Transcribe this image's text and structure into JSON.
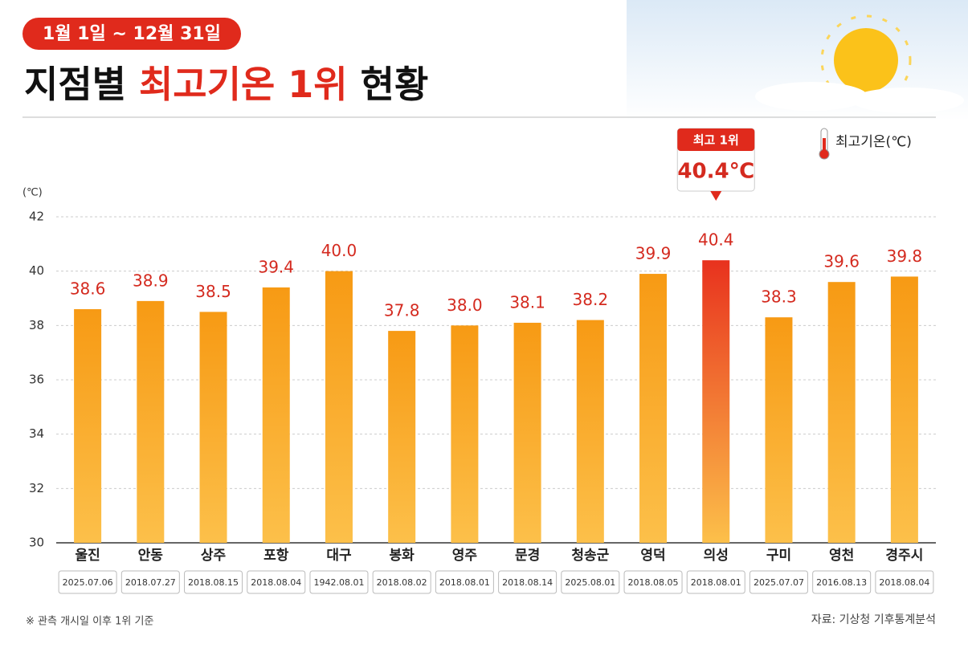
{
  "chart_data": {
    "type": "bar",
    "badge": "1월 1일 ~ 12월 31일",
    "title": [
      "지점별 ",
      "최고기온 1위",
      " 현황"
    ],
    "y_unit": "(℃)",
    "legend": "최고기온(℃)",
    "annotation": {
      "title": "최고 1위",
      "text": "40.4℃"
    },
    "categories": [
      "울진",
      "안동",
      "상주",
      "포항",
      "대구",
      "봉화",
      "영주",
      "문경",
      "청송군",
      "영덕",
      "의성",
      "구미",
      "영천",
      "경주시"
    ],
    "dates": [
      "2025.07.06",
      "2018.07.27",
      "2018.08.15",
      "2018.08.04",
      "1942.08.01",
      "2018.08.02",
      "2018.08.01",
      "2018.08.14",
      "2025.08.01",
      "2018.08.05",
      "2018.08.01",
      "2025.07.07",
      "2016.08.13",
      "2018.08.04"
    ],
    "values": [
      38.6,
      38.9,
      38.5,
      39.4,
      40.0,
      37.8,
      38.0,
      38.1,
      38.2,
      39.9,
      40.4,
      38.3,
      39.6,
      39.8
    ],
    "value_labels": [
      "38.6",
      "38.9",
      "38.5",
      "39.4",
      "40.0",
      "37.8",
      "38.0",
      "38.1",
      "38.2",
      "39.9",
      "40.4",
      "38.3",
      "39.6",
      "39.8"
    ],
    "colors": [
      "#f79a14",
      "#f79a14",
      "#f79a14",
      "#f79a14",
      "#f79a14",
      "#f79a14",
      "#f79a14",
      "#f79a14",
      "#f79a14",
      "#f79a14",
      "#e8321e",
      "#f79a14",
      "#f79a14",
      "#f79a14"
    ],
    "ylim": [
      30,
      42
    ],
    "yticks": [
      30,
      32,
      34,
      36,
      38,
      40,
      42
    ],
    "grid": true,
    "footnote": "※ 관측 개시일 이후 1위 기준",
    "source": "자료: 기상청 기후통계분석"
  }
}
